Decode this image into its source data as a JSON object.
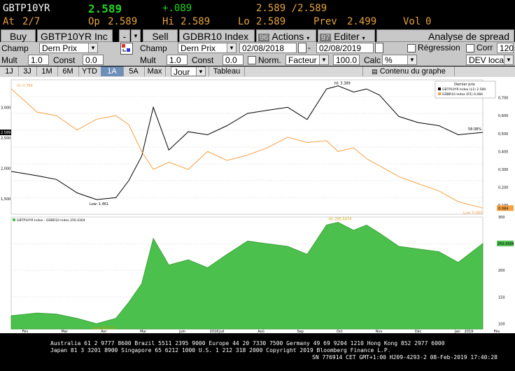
{
  "quote": {
    "ticker": "GBTP10YR",
    "last": "2.589",
    "change": "+.089",
    "bid_ask": "2.589 /2.589",
    "at_label": "At",
    "at_value": "2/7",
    "open_label": "Op",
    "open": "2.589",
    "high_label": "Hi",
    "high": "2.589",
    "low_label": "Lo",
    "low": "2.589",
    "prev_label": "Prev",
    "prev": "2.499",
    "vol_label": "Vol",
    "vol": "0"
  },
  "toolbar": {
    "buy_label": "Buy",
    "security1": "GBTP10YR Inc",
    "minus_label": "-",
    "sell_label": "Sell",
    "security2": "GDBR10 Index",
    "actions_num": "96",
    "actions_label": "Actions",
    "edit_num": "97",
    "edit_label": "Editer",
    "spread_label": "Analyse de spread"
  },
  "params": {
    "champ_label": "Champ",
    "field1": "Dern Prix",
    "field2": "Dern Prix",
    "date_start": "02/08/2018",
    "date_end": "02/08/2019",
    "regression_label": "Régression",
    "corr_label": "Corr",
    "corr_value": "120",
    "mult_label": "Mult",
    "mult1": "1.0",
    "const_label": "Const",
    "const1": "0.0",
    "mult2": "1.0",
    "const2": "0.0",
    "norm_label": "Norm.",
    "factor_label": "Facteur",
    "factor_value": "100.0",
    "calc_label": "Calc",
    "calc_value": "%",
    "dev_label": "DEV local"
  },
  "tabs": {
    "items": [
      "1J",
      "3J",
      "1M",
      "6M",
      "YTD",
      "1A",
      "5A",
      "Max"
    ],
    "active": "1A",
    "period": "Jour",
    "table_label": "Tableau",
    "content_label": "Contenu du graphe"
  },
  "chart_data": [
    {
      "type": "line",
      "x": [
        "2018-02-08",
        "2018-02-28",
        "2018-03-15",
        "2018-03-31",
        "2018-04-15",
        "2018-04-30",
        "2018-05-10",
        "2018-05-20",
        "2018-05-29",
        "2018-06-10",
        "2018-06-25",
        "2018-07-10",
        "2018-07-25",
        "2018-08-10",
        "2018-08-25",
        "2018-09-10",
        "2018-09-25",
        "2018-10-10",
        "2018-10-19",
        "2018-10-31",
        "2018-11-10",
        "2018-11-20",
        "2018-12-05",
        "2018-12-20",
        "2019-01-05",
        "2019-01-20",
        "2019-02-08"
      ],
      "series": [
        {
          "name": "GBTP10YR Index (L1) 2.589",
          "color": "#000000",
          "axis": "left",
          "values": [
            1.95,
            1.88,
            1.82,
            1.6,
            1.49,
            1.52,
            1.8,
            2.2,
            3.0,
            2.3,
            2.6,
            2.55,
            2.7,
            2.9,
            2.95,
            3.0,
            2.8,
            3.3,
            3.35,
            3.25,
            3.3,
            3.2,
            2.85,
            2.75,
            2.7,
            2.55,
            2.589
          ]
        },
        {
          "name": "GDBR10 Index (R1) 0.084",
          "color": "#f5a142",
          "axis": "right",
          "values": [
            0.75,
            0.62,
            0.6,
            0.52,
            0.58,
            0.6,
            0.55,
            0.4,
            0.3,
            0.34,
            0.3,
            0.4,
            0.35,
            0.38,
            0.42,
            0.48,
            0.45,
            0.46,
            0.4,
            0.42,
            0.36,
            0.32,
            0.26,
            0.22,
            0.18,
            0.12,
            0.084
          ]
        }
      ],
      "left_ticks": [
        "3,000",
        "2,500",
        "2,000",
        "1,500"
      ],
      "right_ticks": [
        "0,700",
        "0,600",
        "0,500",
        "0,400",
        "0,300",
        "0,200",
        "0,100"
      ],
      "legend_title": "Dernier prix",
      "annotations": [
        {
          "text": "Low: 1.461",
          "target": "low"
        },
        {
          "text": "Hi: 3.389",
          "target": "high"
        },
        {
          "text": "Hi: 0.784",
          "target": "start"
        },
        {
          "text": "Low: 0.084",
          "target": "end-low"
        }
      ],
      "current_left": "2.589",
      "current_right": "0.084",
      "end_label": "58.08%"
    },
    {
      "type": "area",
      "x": [
        "2018-02-08",
        "2018-02-28",
        "2018-03-15",
        "2018-03-31",
        "2018-04-15",
        "2018-04-30",
        "2018-05-10",
        "2018-05-20",
        "2018-05-29",
        "2018-06-10",
        "2018-06-25",
        "2018-07-10",
        "2018-07-25",
        "2018-08-10",
        "2018-08-25",
        "2018-09-10",
        "2018-09-25",
        "2018-10-10",
        "2018-10-19",
        "2018-10-31",
        "2018-11-10",
        "2018-11-20",
        "2018-12-05",
        "2018-12-20",
        "2019-01-05",
        "2019-01-20",
        "2019-02-08"
      ],
      "series": [
        {
          "name": "GBTP10YR Index - GDBR10 Index 250.4304",
          "color": "#4cc04c",
          "values": [
            115,
            120,
            118,
            110,
            100,
            110,
            140,
            175,
            260,
            210,
            220,
            205,
            230,
            255,
            250,
            245,
            230,
            285,
            290,
            275,
            285,
            270,
            245,
            240,
            235,
            215,
            250.43
          ]
        }
      ],
      "ylim": [
        90,
        300
      ],
      "ticks": [
        "300",
        "250",
        "200",
        "150",
        "100"
      ],
      "annotations": [
        {
          "text": "Hi: 293.5474",
          "target": "high"
        },
        {
          "text": "Low: 96.5211",
          "target": "low"
        }
      ],
      "current_value": "250.4304",
      "month_labels": [
        "Fév",
        "Mar",
        "Avr",
        "Mai",
        "Juin",
        "Juil",
        "Aoû",
        "Sep",
        "Oct",
        "Nov",
        "Déc",
        "Jan",
        "Fév"
      ],
      "year_labels": [
        "2018",
        "2019"
      ]
    }
  ],
  "footer": {
    "line1": "Australia 61 2 9777 8600 Brazil 5511 2395 9000 Europe 44 20 7330 7500 Germany 49 69 9204 1210 Hong Kong 852 2977 6000",
    "line2": "Japan 81 3 3201 8900         Singapore 65 6212 1000         U.S. 1 212 318 2000                Copyright 2019 Bloomberg Finance L.P.",
    "line3": "SN 776914 CET  GMT+1:00 H209-4293-2 08-Feb-2019 17:40:28"
  },
  "colors": {
    "amber": "#e8a33d",
    "green": "#22d622",
    "spread_area": "#4cc04c",
    "gdbr_line": "#f5a142",
    "btp_line": "#000000",
    "active_tab": "#6e8fb8"
  }
}
